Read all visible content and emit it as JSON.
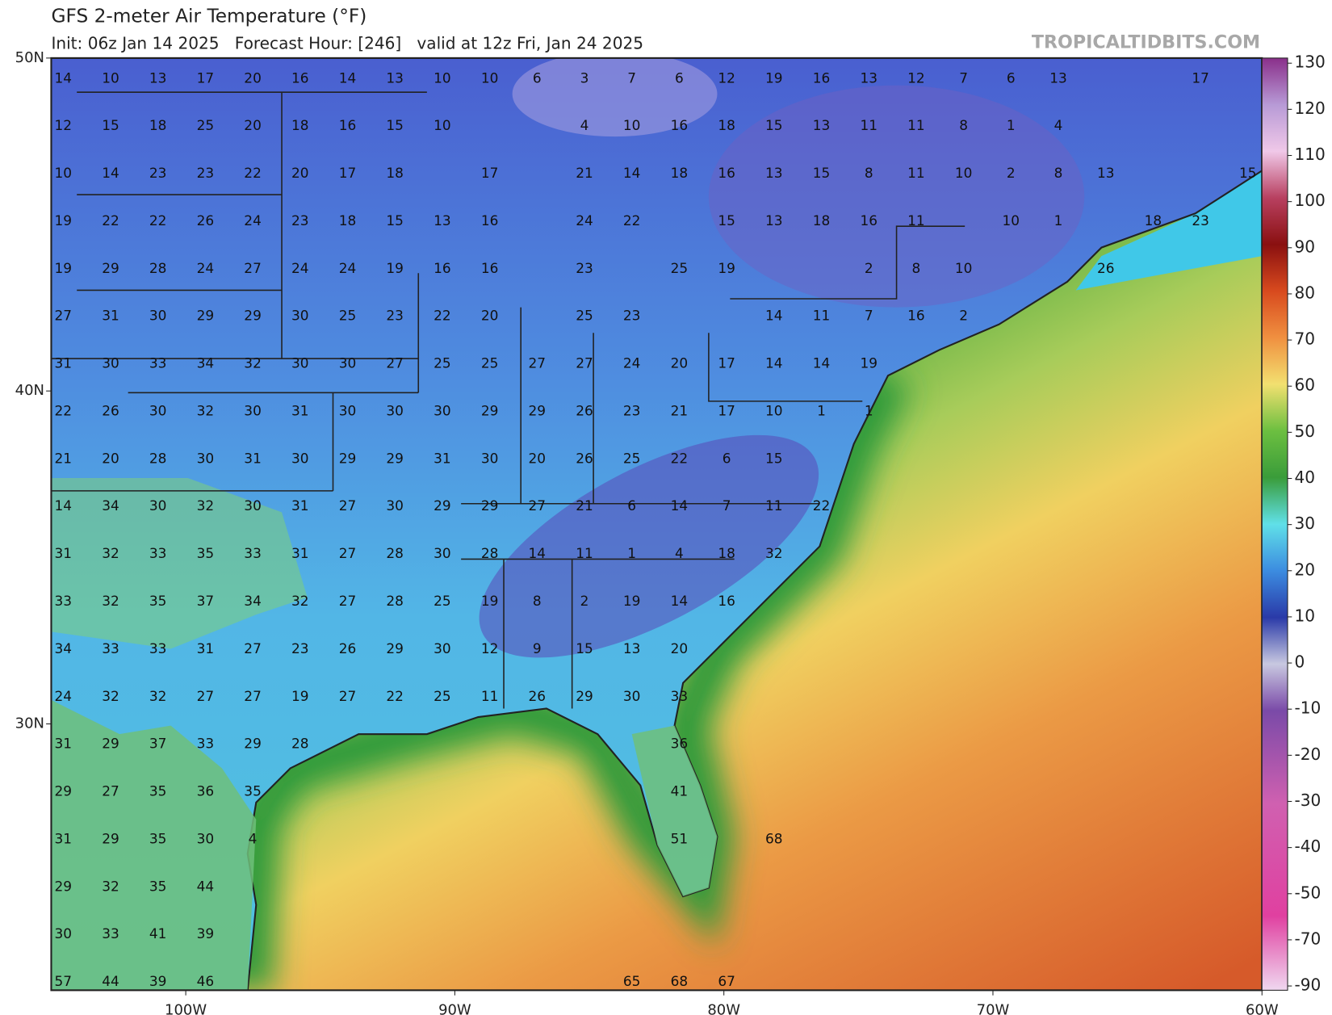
{
  "header": {
    "title": "GFS 2-meter Air Temperature (°F)",
    "subtitle": "Init: 06z Jan 14 2025   Forecast Hour: [246]   valid at 12z Fri, Jan 24 2025",
    "credit": "TROPICALTIDBITS.COM"
  },
  "chart_data": {
    "type": "map",
    "xlim": [
      -105,
      -60
    ],
    "ylim": [
      22,
      50
    ],
    "xticks": [
      {
        "value": -100,
        "label": "100W"
      },
      {
        "value": -90,
        "label": "90W"
      },
      {
        "value": -80,
        "label": "80W"
      },
      {
        "value": -70,
        "label": "70W"
      },
      {
        "value": -60,
        "label": "60W"
      }
    ],
    "yticks": [
      {
        "value": 50,
        "label": "50N"
      },
      {
        "value": 40,
        "label": "40N"
      },
      {
        "value": 30,
        "label": "30N"
      }
    ],
    "colorbar_ticks": [
      130,
      120,
      110,
      100,
      90,
      80,
      70,
      60,
      50,
      40,
      30,
      20,
      10,
      0,
      -10,
      -20,
      -30,
      -40,
      -50,
      -70,
      -90
    ],
    "station_values": [
      [
        14,
        10,
        13,
        17,
        20,
        16,
        14,
        13,
        10,
        10,
        6,
        3,
        7,
        6,
        12,
        19,
        16,
        13,
        12,
        7,
        6,
        13,
        null,
        null,
        17,
        null
      ],
      [
        12,
        15,
        18,
        25,
        20,
        18,
        16,
        15,
        10,
        null,
        null,
        4,
        10,
        16,
        18,
        15,
        13,
        11,
        11,
        8,
        1,
        4,
        null,
        null,
        null,
        null
      ],
      [
        10,
        14,
        23,
        23,
        22,
        20,
        17,
        18,
        null,
        17,
        null,
        21,
        14,
        18,
        16,
        13,
        15,
        8,
        11,
        10,
        2,
        8,
        13,
        null,
        null,
        15
      ],
      [
        19,
        22,
        22,
        26,
        24,
        23,
        18,
        15,
        13,
        16,
        null,
        24,
        22,
        null,
        15,
        13,
        18,
        16,
        11,
        null,
        10,
        1,
        null,
        18,
        23,
        null
      ],
      [
        19,
        29,
        28,
        24,
        27,
        24,
        24,
        19,
        16,
        16,
        null,
        23,
        null,
        25,
        19,
        null,
        null,
        2,
        8,
        10,
        null,
        null,
        26,
        null,
        null,
        null
      ],
      [
        27,
        31,
        30,
        29,
        29,
        30,
        25,
        23,
        22,
        20,
        null,
        25,
        23,
        null,
        null,
        14,
        11,
        7,
        16,
        2,
        null,
        null,
        null,
        null,
        null,
        null
      ],
      [
        31,
        30,
        33,
        34,
        32,
        30,
        30,
        27,
        25,
        25,
        27,
        27,
        24,
        20,
        17,
        14,
        14,
        19,
        null,
        null,
        null,
        null,
        null,
        null,
        null,
        null
      ],
      [
        22,
        26,
        30,
        32,
        30,
        31,
        30,
        30,
        30,
        29,
        29,
        26,
        23,
        21,
        17,
        10,
        1,
        1,
        null,
        null,
        null,
        null,
        null,
        null,
        null,
        null
      ],
      [
        21,
        20,
        28,
        30,
        31,
        30,
        29,
        29,
        31,
        30,
        20,
        26,
        25,
        22,
        6,
        15,
        null,
        null,
        null,
        null,
        null,
        null,
        null,
        null,
        null,
        null
      ],
      [
        14,
        34,
        30,
        32,
        30,
        31,
        27,
        30,
        29,
        29,
        27,
        21,
        6,
        14,
        7,
        11,
        22,
        null,
        null,
        null,
        null,
        null,
        null,
        null,
        null,
        null
      ],
      [
        31,
        32,
        33,
        35,
        33,
        31,
        27,
        28,
        30,
        28,
        14,
        11,
        1,
        4,
        18,
        32,
        null,
        null,
        null,
        null,
        null,
        null,
        null,
        null,
        null,
        null
      ],
      [
        33,
        32,
        35,
        37,
        34,
        32,
        27,
        28,
        25,
        19,
        8,
        2,
        19,
        14,
        16,
        null,
        null,
        null,
        null,
        null,
        null,
        null,
        null,
        null,
        null,
        null
      ],
      [
        34,
        33,
        33,
        31,
        27,
        23,
        26,
        29,
        30,
        12,
        9,
        15,
        13,
        20,
        null,
        null,
        null,
        null,
        null,
        null,
        null,
        null,
        null,
        null,
        null,
        null
      ],
      [
        24,
        32,
        32,
        27,
        27,
        19,
        27,
        22,
        25,
        11,
        26,
        29,
        30,
        33,
        null,
        null,
        null,
        null,
        null,
        null,
        null,
        null,
        null,
        null,
        null,
        null
      ],
      [
        31,
        29,
        37,
        33,
        29,
        28,
        null,
        null,
        null,
        null,
        null,
        null,
        null,
        36,
        null,
        null,
        null,
        null,
        null,
        null,
        null,
        null,
        null,
        null,
        null,
        null
      ],
      [
        29,
        27,
        35,
        36,
        35,
        null,
        null,
        null,
        null,
        null,
        null,
        null,
        null,
        41,
        null,
        null,
        null,
        null,
        null,
        null,
        null,
        null,
        null,
        null,
        null,
        null
      ],
      [
        31,
        29,
        35,
        30,
        4,
        null,
        null,
        null,
        null,
        null,
        null,
        null,
        null,
        51,
        null,
        68,
        null,
        null,
        null,
        null,
        null,
        null,
        null,
        null,
        null,
        null
      ],
      [
        29,
        32,
        35,
        44,
        null,
        null,
        null,
        null,
        null,
        null,
        null,
        null,
        null,
        null,
        null,
        null,
        null,
        null,
        null,
        null,
        null,
        null,
        null,
        null,
        null,
        null
      ],
      [
        30,
        33,
        41,
        39,
        null,
        null,
        null,
        null,
        null,
        null,
        null,
        null,
        null,
        null,
        null,
        null,
        null,
        null,
        null,
        null,
        null,
        null,
        null,
        null,
        null,
        null
      ],
      [
        57,
        44,
        39,
        46,
        null,
        null,
        null,
        null,
        null,
        null,
        null,
        null,
        65,
        68,
        67,
        null,
        null,
        null,
        null,
        null,
        null,
        null,
        null,
        null,
        null,
        null
      ]
    ]
  }
}
